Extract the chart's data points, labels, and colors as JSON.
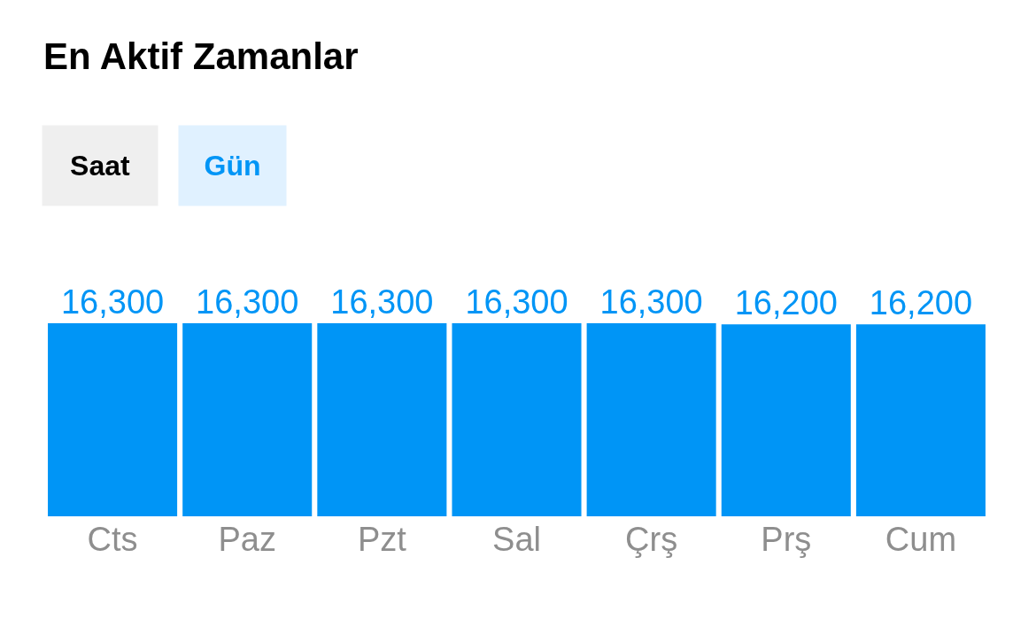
{
  "chart_data": {
    "type": "bar",
    "title": "En Aktif Zamanlar",
    "annotations": [
      "Saat",
      "Gün"
    ],
    "categories": [
      "Cts",
      "Paz",
      "Pzt",
      "Sal",
      "Çrş",
      "Prş",
      "Cum"
    ],
    "values": [
      16300,
      16300,
      16300,
      16300,
      16300,
      16200,
      16200
    ],
    "value_labels": [
      "16,300",
      "16,300",
      "16,300",
      "16,300",
      "16,300",
      "16,200",
      "16,200"
    ],
    "color": "#0095f6"
  }
}
